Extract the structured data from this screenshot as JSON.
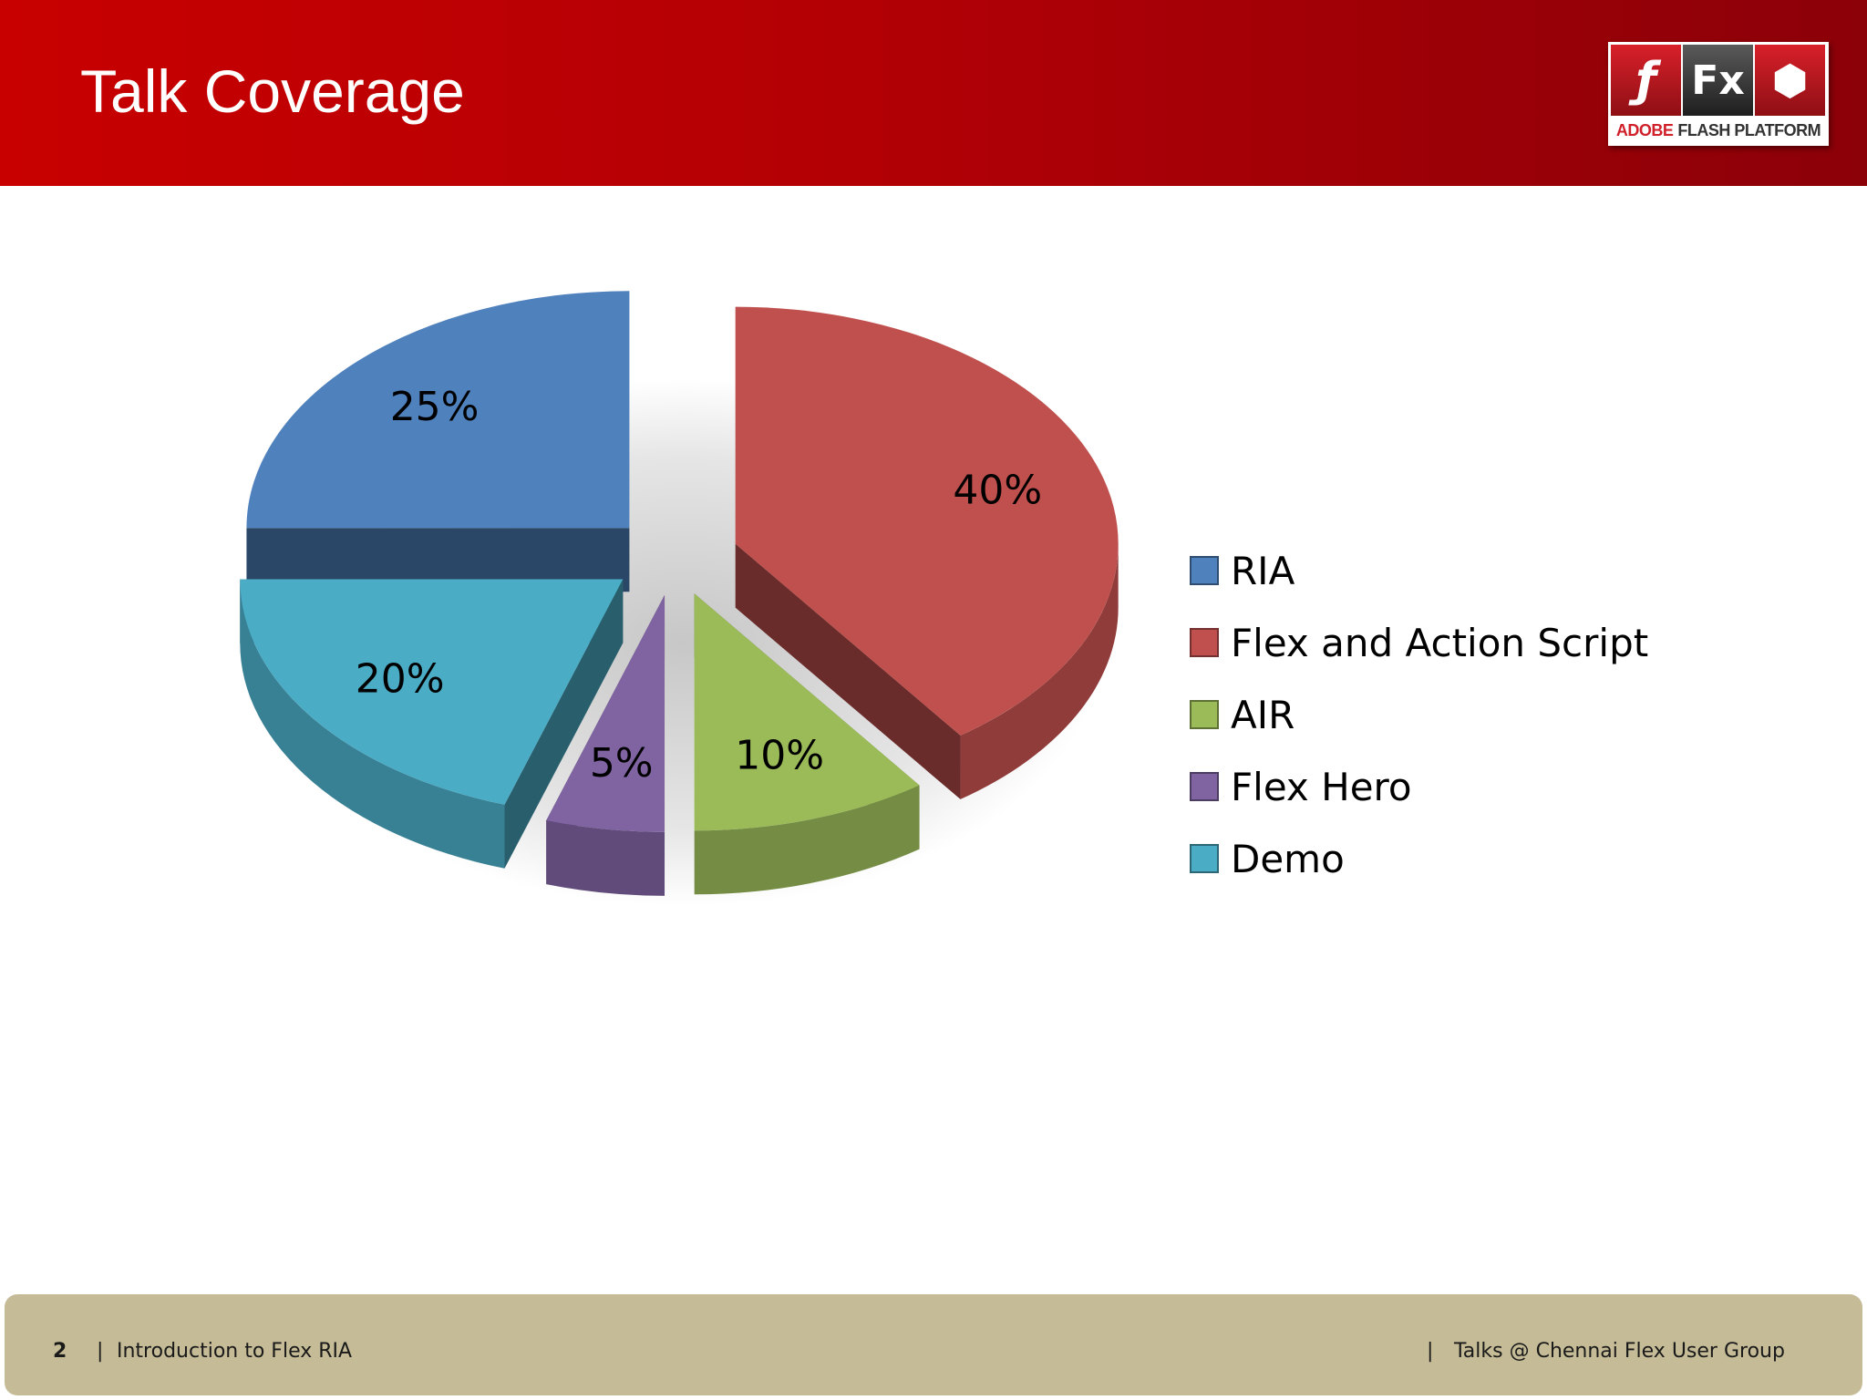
{
  "slide": {
    "title": "Talk Coverage"
  },
  "logo": {
    "tiles": [
      "ƒ",
      "Fx",
      "⬢"
    ],
    "adobe": "ADOBE",
    "platform": "FLASH PLATFORM"
  },
  "footer": {
    "page_number": "2",
    "separator": "|",
    "left_text": "Introduction to Flex RIA",
    "right_text": "Talks @ Chennai Flex User Group"
  },
  "chart_data": {
    "type": "pie",
    "title": "",
    "labels": [
      "RIA",
      "Flex and Action Script",
      "AIR",
      "Flex Hero",
      "Demo"
    ],
    "values": [
      25,
      40,
      10,
      5,
      20
    ],
    "value_labels": [
      "25%",
      "40%",
      "10%",
      "5%",
      "20%"
    ],
    "colors": [
      "#4f81bd",
      "#c0504d",
      "#9bbb59",
      "#8064a2",
      "#4bacc6"
    ],
    "exploded": true,
    "style": "3d",
    "legend": "right"
  }
}
